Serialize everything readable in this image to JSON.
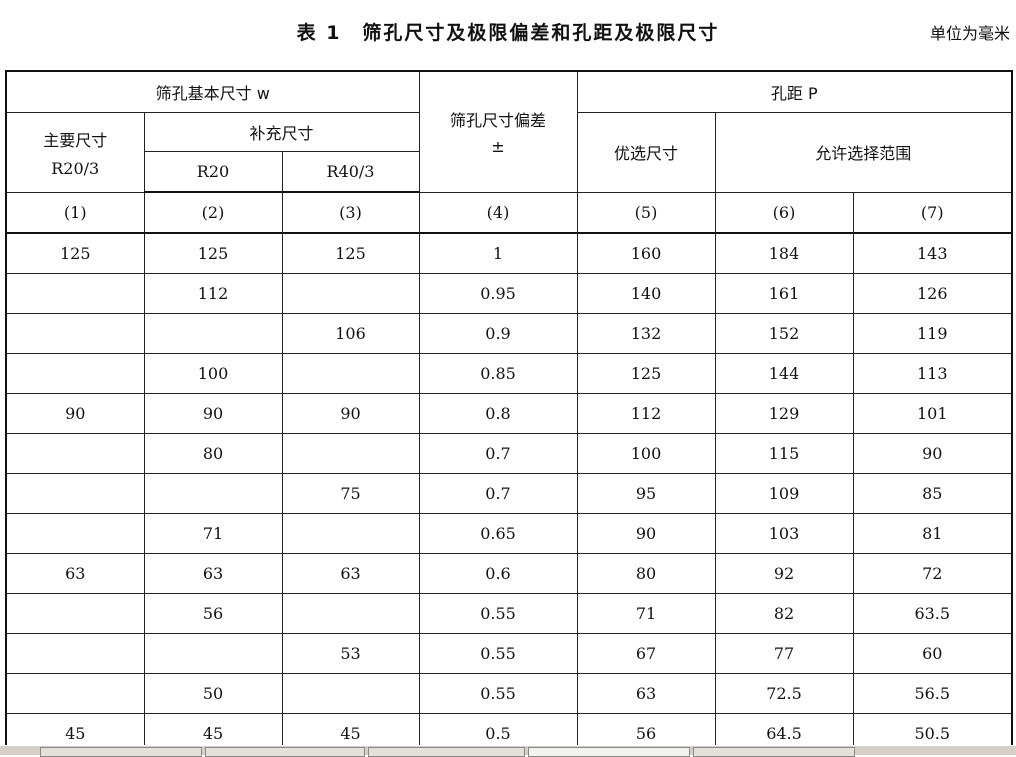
{
  "document": {
    "title": "表 1　筛孔尺寸及极限偏差和孔距及极限尺寸",
    "unit": "单位为毫米"
  },
  "table": {
    "header": {
      "basic_size": "筛孔基本尺寸 w",
      "deviation": "筛孔尺寸偏差",
      "deviation_sign": "±",
      "pitch": "孔距 P",
      "main_size": "主要尺寸",
      "main_series": "R20/3",
      "supplementary": "补充尺寸",
      "r20": "R20",
      "r40_3": "R40/3",
      "preferred": "优选尺寸",
      "allowed_range": "允许选择范围",
      "col_numbers": [
        "(1)",
        "(2)",
        "(3)",
        "(4)",
        "(5)",
        "(6)",
        "(7)"
      ]
    },
    "rows": [
      [
        "125",
        "125",
        "125",
        "1",
        "160",
        "184",
        "143"
      ],
      [
        "",
        "112",
        "",
        "0.95",
        "140",
        "161",
        "126"
      ],
      [
        "",
        "",
        "106",
        "0.9",
        "132",
        "152",
        "119"
      ],
      [
        "",
        "100",
        "",
        "0.85",
        "125",
        "144",
        "113"
      ],
      [
        "90",
        "90",
        "90",
        "0.8",
        "112",
        "129",
        "101"
      ],
      [
        "",
        "80",
        "",
        "0.7",
        "100",
        "115",
        "90"
      ],
      [
        "",
        "",
        "75",
        "0.7",
        "95",
        "109",
        "85"
      ],
      [
        "",
        "71",
        "",
        "0.65",
        "90",
        "103",
        "81"
      ],
      [
        "63",
        "63",
        "63",
        "0.6",
        "80",
        "92",
        "72"
      ],
      [
        "",
        "56",
        "",
        "0.55",
        "71",
        "82",
        "63.5"
      ],
      [
        "",
        "",
        "53",
        "0.55",
        "67",
        "77",
        "60"
      ],
      [
        "",
        "50",
        "",
        "0.55",
        "63",
        "72.5",
        "56.5"
      ],
      [
        "45",
        "45",
        "45",
        "0.5",
        "56",
        "64.5",
        "50.5"
      ]
    ]
  }
}
